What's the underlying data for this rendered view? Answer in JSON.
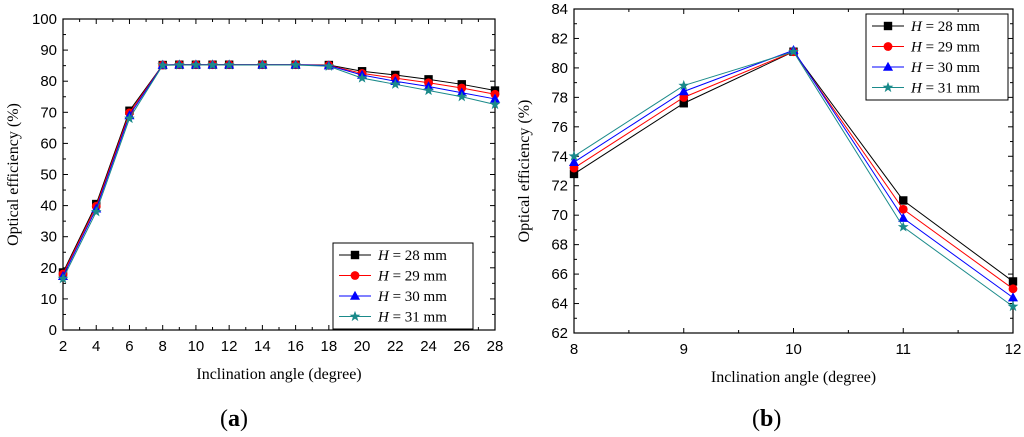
{
  "chart_data": [
    {
      "type": "line",
      "panel_label": "a",
      "xlabel": "Inclination angle (degree)",
      "ylabel": "Optical efficiency (%)",
      "xlim": [
        2,
        28
      ],
      "ylim": [
        0,
        100
      ],
      "xticks": [
        2,
        4,
        6,
        8,
        10,
        12,
        14,
        16,
        18,
        20,
        22,
        24,
        26,
        28
      ],
      "yticks": [
        0,
        10,
        20,
        30,
        40,
        50,
        60,
        70,
        80,
        90,
        100
      ],
      "x": [
        2,
        4,
        6,
        8,
        9,
        10,
        11,
        12,
        14,
        16,
        18,
        20,
        22,
        24,
        26,
        28
      ],
      "legend_position": "bottom-right",
      "grid": false,
      "series": [
        {
          "name": "28 mm",
          "var": "H",
          "color": "#000000",
          "marker": "square",
          "values": [
            18.5,
            40.5,
            70.5,
            85.2,
            85.3,
            85.3,
            85.3,
            85.3,
            85.3,
            85.3,
            85.2,
            83.2,
            82.0,
            80.6,
            79.0,
            77.0
          ]
        },
        {
          "name": "29 mm",
          "var": "H",
          "color": "#ff0000",
          "marker": "circle",
          "values": [
            18.0,
            39.8,
            69.8,
            85.2,
            85.3,
            85.3,
            85.3,
            85.3,
            85.3,
            85.3,
            85.1,
            82.5,
            81.0,
            79.5,
            77.8,
            75.8
          ]
        },
        {
          "name": "30 mm",
          "var": "H",
          "color": "#0000ff",
          "marker": "triangle",
          "values": [
            17.3,
            39.0,
            69.0,
            85.2,
            85.3,
            85.3,
            85.3,
            85.3,
            85.3,
            85.3,
            85.0,
            82.0,
            80.0,
            78.3,
            76.3,
            74.3
          ]
        },
        {
          "name": "31 mm",
          "var": "H",
          "color": "#1a8a8a",
          "marker": "star",
          "values": [
            16.5,
            38.0,
            68.0,
            85.1,
            85.2,
            85.2,
            85.2,
            85.2,
            85.2,
            85.2,
            84.8,
            81.0,
            79.0,
            77.0,
            75.0,
            72.5
          ]
        }
      ]
    },
    {
      "type": "line",
      "panel_label": "b",
      "xlabel": "Inclination angle (degree)",
      "ylabel": "Optical efficiency (%)",
      "xlim": [
        8,
        12
      ],
      "ylim": [
        62,
        84
      ],
      "xticks": [
        8,
        9,
        10,
        11,
        12
      ],
      "yticks": [
        62,
        64,
        66,
        68,
        70,
        72,
        74,
        76,
        78,
        80,
        82,
        84
      ],
      "x": [
        8,
        9,
        10,
        11,
        12
      ],
      "legend_position": "top-right",
      "grid": false,
      "series": [
        {
          "name": "28 mm",
          "var": "H",
          "color": "#000000",
          "marker": "square",
          "values": [
            72.8,
            77.6,
            81.1,
            71.0,
            65.5
          ]
        },
        {
          "name": "29 mm",
          "var": "H",
          "color": "#ff0000",
          "marker": "circle",
          "values": [
            73.2,
            78.0,
            81.1,
            70.4,
            65.0
          ]
        },
        {
          "name": "30 mm",
          "var": "H",
          "color": "#0000ff",
          "marker": "triangle",
          "values": [
            73.6,
            78.4,
            81.2,
            69.8,
            64.4
          ]
        },
        {
          "name": "31 mm",
          "var": "H",
          "color": "#1a8a8a",
          "marker": "star",
          "values": [
            74.0,
            78.8,
            81.1,
            69.2,
            63.8
          ]
        }
      ]
    }
  ]
}
